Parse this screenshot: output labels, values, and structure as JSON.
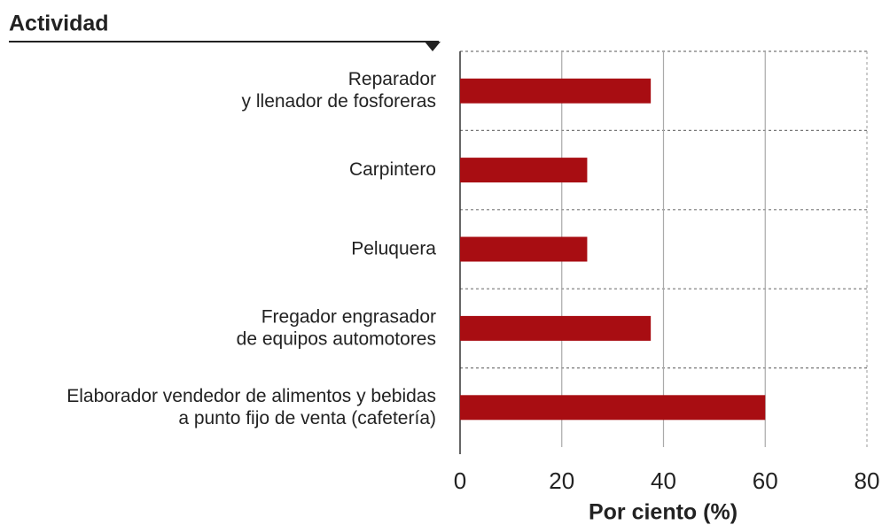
{
  "chart_data": {
    "type": "bar",
    "orientation": "horizontal",
    "title": "Actividad",
    "categories": [
      [
        "Reparador",
        "y llenador de fosforeras"
      ],
      [
        "Carpintero"
      ],
      [
        "Peluquera"
      ],
      [
        "Fregador engrasador",
        "de equipos automotores"
      ],
      [
        "Elaborador vendedor de alimentos y bebidas",
        "a punto fijo de venta (cafetería)"
      ]
    ],
    "values": [
      37.5,
      25,
      25,
      37.5,
      60
    ],
    "color": "#a80d12",
    "xlim": [
      0,
      80
    ],
    "xticks": [
      0,
      20,
      40,
      60,
      80
    ],
    "xlabel": "Por ciento (%)",
    "grid": true
  }
}
